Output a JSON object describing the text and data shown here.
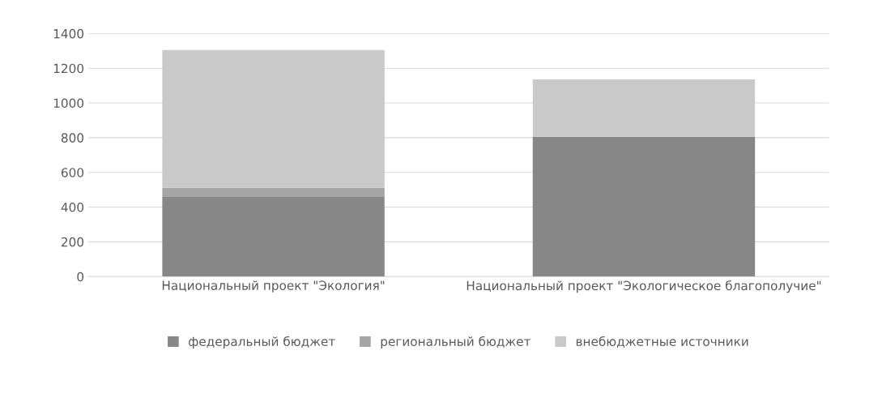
{
  "chart_data": {
    "type": "bar",
    "stacked": true,
    "categories": [
      "Национальный проект \"Экология\"",
      "Национальный проект \"Экологическое благополучие\""
    ],
    "series": [
      {
        "name": "федеральный бюджет",
        "color": "#878787",
        "values": [
          458,
          805
        ]
      },
      {
        "name": "региональный бюджет",
        "color": "#a5a5a5",
        "values": [
          53,
          0
        ]
      },
      {
        "name": "внебюджетные источники",
        "color": "#c9c9c9",
        "values": [
          794,
          330
        ]
      }
    ],
    "ylim": [
      0,
      1400
    ],
    "yticks": [
      0,
      200,
      400,
      600,
      800,
      1000,
      1200,
      1400
    ],
    "grid": "y",
    "legend": "bottom"
  }
}
